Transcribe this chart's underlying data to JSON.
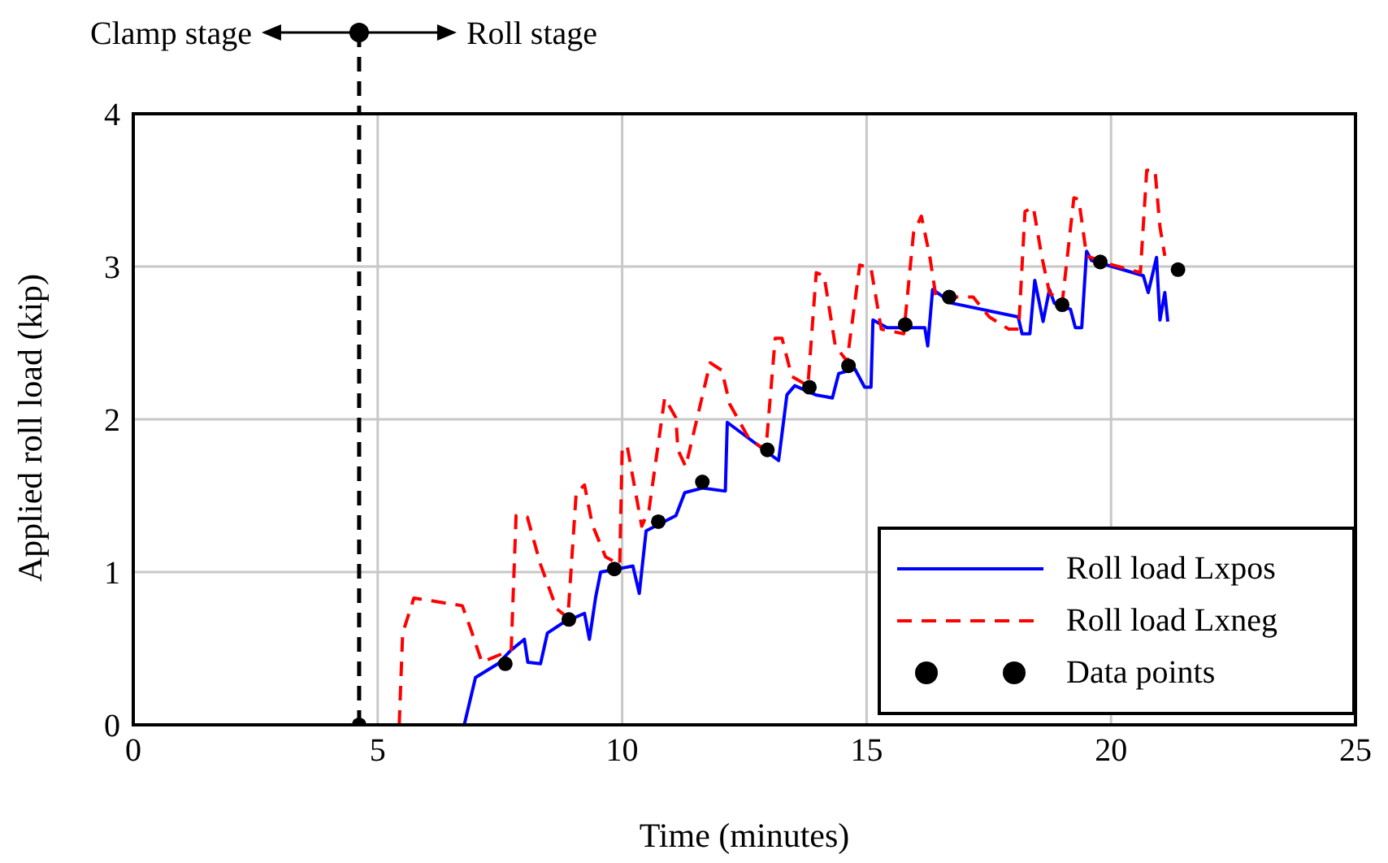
{
  "chart_data": {
    "type": "line",
    "xlabel": "Time (minutes)",
    "ylabel": "Applied roll load (kip)",
    "xlim": [
      0,
      25
    ],
    "xticks": [
      0,
      5,
      10,
      15,
      20,
      25
    ],
    "ylim": [
      0,
      4
    ],
    "yticks": [
      0,
      1,
      2,
      3,
      4
    ],
    "grid": true,
    "legend": "bottom right",
    "annotations": [
      "Clamp stage",
      "Roll stage"
    ],
    "ref_lines": [
      {
        "axis": "x",
        "value": 4.62,
        "color": "#000000",
        "line_style": "dashed"
      }
    ],
    "series": [
      {
        "name": "Roll load Lxpos",
        "color": "#0000ff",
        "line_style": "solid",
        "marker": "none",
        "x": [
          5.87,
          6.77,
          7.0,
          7.46,
          7.73,
          8.0,
          8.07,
          8.33,
          8.47,
          8.8,
          9.23,
          9.33,
          9.46,
          9.56,
          10.22,
          10.35,
          10.49,
          11.1,
          11.28,
          11.64,
          12.11,
          12.15,
          13.2,
          13.37,
          13.53,
          13.96,
          14.3,
          14.43,
          14.76,
          14.96,
          15.09,
          15.13,
          15.42,
          16.19,
          16.25,
          16.35,
          16.75,
          18.1,
          18.18,
          18.34,
          18.44,
          18.61,
          18.74,
          18.84,
          19.17,
          19.27,
          19.4,
          19.5,
          19.6,
          20.66,
          20.76,
          20.93,
          21.0,
          21.1,
          21.16
        ],
        "values": [
          0.0,
          0.0,
          0.31,
          0.4,
          0.49,
          0.56,
          0.41,
          0.4,
          0.6,
          0.67,
          0.73,
          0.56,
          0.84,
          1.0,
          1.04,
          0.86,
          1.27,
          1.37,
          1.52,
          1.55,
          1.53,
          1.98,
          1.73,
          2.16,
          2.22,
          2.16,
          2.14,
          2.3,
          2.33,
          2.21,
          2.21,
          2.65,
          2.6,
          2.6,
          2.48,
          2.85,
          2.76,
          2.67,
          2.56,
          2.56,
          2.91,
          2.64,
          2.85,
          2.76,
          2.72,
          2.6,
          2.6,
          3.1,
          3.04,
          2.94,
          2.83,
          3.06,
          2.65,
          2.83,
          2.64
        ]
      },
      {
        "name": "Roll load Lxneg",
        "color": "#ff0000",
        "line_style": "dashed",
        "marker": "none",
        "x": [
          5.44,
          5.51,
          5.74,
          6.73,
          6.9,
          7.13,
          7.73,
          7.83,
          8.06,
          8.33,
          8.66,
          8.89,
          9.06,
          9.23,
          9.39,
          9.66,
          9.95,
          10.0,
          10.1,
          10.4,
          10.55,
          10.87,
          11.1,
          11.14,
          11.3,
          11.8,
          12.04,
          12.2,
          12.6,
          12.94,
          13.13,
          13.27,
          13.47,
          13.8,
          13.97,
          14.13,
          14.36,
          14.6,
          14.86,
          15.09,
          15.3,
          15.76,
          15.96,
          16.12,
          16.29,
          16.42,
          17.18,
          17.51,
          17.91,
          18.11,
          18.24,
          18.41,
          18.58,
          18.74,
          19.0,
          19.24,
          19.34,
          19.5,
          19.93,
          20.6,
          20.73,
          20.9,
          21.0,
          21.1
        ],
        "values": [
          0.0,
          0.6,
          0.83,
          0.78,
          0.63,
          0.41,
          0.49,
          1.37,
          1.36,
          1.05,
          0.76,
          0.7,
          1.52,
          1.57,
          1.31,
          1.1,
          1.05,
          1.8,
          1.83,
          1.3,
          1.41,
          2.14,
          2.01,
          1.8,
          1.69,
          2.37,
          2.32,
          2.1,
          1.87,
          1.8,
          2.53,
          2.53,
          2.28,
          2.22,
          2.96,
          2.94,
          2.48,
          2.38,
          3.01,
          2.99,
          2.59,
          2.56,
          3.22,
          3.33,
          3.07,
          2.8,
          2.8,
          2.67,
          2.59,
          2.59,
          3.36,
          3.39,
          3.07,
          2.83,
          2.76,
          3.45,
          3.44,
          3.07,
          3.02,
          2.96,
          3.63,
          3.63,
          3.26,
          3.07
        ]
      },
      {
        "name": "Data points",
        "type": "scatter",
        "color": "#000000",
        "marker": "circle",
        "x": [
          4.62,
          7.61,
          8.91,
          9.84,
          10.74,
          11.64,
          12.97,
          13.83,
          14.63,
          15.79,
          16.69,
          19.0,
          19.78,
          21.37
        ],
        "values": [
          0,
          0.4,
          0.69,
          1.02,
          1.33,
          1.59,
          1.8,
          2.21,
          2.35,
          2.62,
          2.8,
          2.75,
          3.03,
          2.98
        ]
      }
    ]
  }
}
